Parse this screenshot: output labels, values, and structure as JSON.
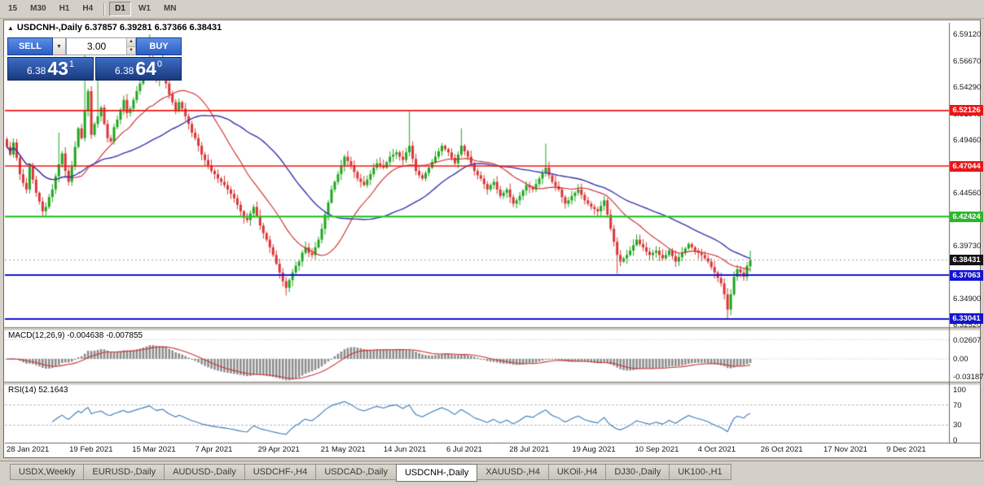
{
  "toolbar": {
    "timeframe_groups": [
      [
        "15",
        "M30",
        "H1",
        "H4"
      ],
      [
        "D1",
        "W1",
        "MN"
      ]
    ],
    "active": "D1"
  },
  "chart": {
    "title_text": "USDCNH-,Daily 6.37857 6.39281 6.37366 6.38431"
  },
  "one_click": {
    "sell_label": "SELL",
    "buy_label": "BUY",
    "volume": "3.00",
    "sell_price": {
      "base": "6.38",
      "pips": "43",
      "sup": "1"
    },
    "buy_price": {
      "base": "6.38",
      "pips": "64",
      "sup": "0"
    }
  },
  "price_axis": {
    "labels": [
      {
        "text": "6.59120",
        "price": 6.5912
      },
      {
        "text": "6.56670",
        "price": 6.5667
      },
      {
        "text": "6.54290",
        "price": 6.5429
      },
      {
        "text": "6.51840",
        "price": 6.5184
      },
      {
        "text": "6.49460",
        "price": 6.4946
      },
      {
        "text": "6.44560",
        "price": 6.4456
      },
      {
        "text": "6.39730",
        "price": 6.3973
      },
      {
        "text": "6.34900",
        "price": 6.349
      },
      {
        "text": "6.32520",
        "price": 6.3252
      }
    ],
    "badges": [
      {
        "text": "6.52126",
        "price": 6.52126,
        "bg": "#e81717",
        "role": "resistance-level"
      },
      {
        "text": "6.47044",
        "price": 6.47044,
        "bg": "#e81717",
        "role": "resistance-level"
      },
      {
        "text": "6.42424",
        "price": 6.42424,
        "bg": "#2db52d",
        "role": "mid-level"
      },
      {
        "text": "6.38431",
        "price": 6.38431,
        "bg": "#141414",
        "role": "current-price"
      },
      {
        "text": "6.37063",
        "price": 6.37063,
        "bg": "#1414d2",
        "role": "support-level"
      },
      {
        "text": "6.33041",
        "price": 6.33041,
        "bg": "#1414d2",
        "role": "support-level"
      }
    ]
  },
  "indicators": {
    "macd": {
      "label": "MACD(12,26,9) -0.004638 -0.007855",
      "axis": [
        {
          "text": "0.02607",
          "value": 0.02607
        },
        {
          "text": "0.00",
          "value": 0
        },
        {
          "text": "-0.03187",
          "value": -0.03187
        }
      ]
    },
    "rsi": {
      "label": "RSI(14) 52.1643",
      "axis": [
        {
          "text": "100",
          "value": 100
        },
        {
          "text": "70",
          "value": 70
        },
        {
          "text": "30",
          "value": 30
        },
        {
          "text": "0",
          "value": 0
        }
      ],
      "levels": [
        70,
        30
      ]
    }
  },
  "date_axis": [
    "28 Jan 2021",
    "19 Feb 2021",
    "15 Mar 2021",
    "7 Apr 2021",
    "29 Apr 2021",
    "21 May 2021",
    "14 Jun 2021",
    "6 Jul 2021",
    "28 Jul 2021",
    "19 Aug 2021",
    "10 Sep 2021",
    "4 Oct 2021",
    "26 Oct 2021",
    "17 Nov 2021",
    "9 Dec 2021"
  ],
  "tabs": [
    {
      "label": "USDX,Weekly",
      "active": false
    },
    {
      "label": "EURUSD-,Daily",
      "active": false
    },
    {
      "label": "AUDUSD-,Daily",
      "active": false
    },
    {
      "label": "USDCHF-,H4",
      "active": false
    },
    {
      "label": "USDCAD-,Daily",
      "active": false
    },
    {
      "label": "USDCNH-,Daily",
      "active": true
    },
    {
      "label": "XAUUSD-,H4",
      "active": false
    },
    {
      "label": "UKOil-,H4",
      "active": false
    },
    {
      "label": "DJ30-,Daily",
      "active": false
    },
    {
      "label": "UK100-,H1",
      "active": false
    }
  ],
  "chart_data": {
    "type": "candlestick",
    "symbol": "USDCNH-",
    "timeframe": "Daily",
    "bid": 6.38431,
    "ask": 6.3864,
    "last_candle_ohlc": {
      "open": 6.37857,
      "high": 6.39281,
      "low": 6.37366,
      "close": 6.38431
    },
    "first_open": 6.495,
    "closes": [
      6.488,
      6.481,
      6.492,
      6.478,
      6.463,
      6.455,
      6.449,
      6.47,
      6.458,
      6.446,
      6.438,
      6.429,
      6.433,
      6.442,
      6.449,
      6.461,
      6.472,
      6.482,
      6.466,
      6.456,
      6.47,
      6.488,
      6.505,
      6.496,
      6.521,
      6.539,
      6.499,
      6.509,
      6.516,
      6.524,
      6.509,
      6.496,
      6.493,
      6.506,
      6.513,
      6.522,
      6.531,
      6.519,
      6.523,
      6.531,
      6.539,
      6.546,
      6.553,
      6.561,
      6.568,
      6.558,
      6.549,
      6.553,
      6.556,
      6.546,
      6.536,
      6.529,
      6.521,
      6.529,
      6.523,
      6.516,
      6.509,
      6.501,
      6.496,
      6.489,
      6.481,
      6.476,
      6.471,
      6.466,
      6.463,
      6.459,
      6.456,
      6.453,
      6.449,
      6.445,
      6.441,
      6.435,
      6.429,
      6.423,
      6.421,
      6.427,
      6.433,
      6.425,
      6.416,
      6.409,
      6.403,
      6.396,
      6.389,
      6.381,
      6.373,
      6.365,
      6.359,
      6.366,
      6.373,
      6.379,
      6.383,
      6.391,
      6.396,
      6.391,
      6.389,
      6.396,
      6.403,
      6.413,
      6.426,
      6.437,
      6.449,
      6.456,
      6.463,
      6.471,
      6.479,
      6.475,
      6.471,
      6.465,
      6.459,
      6.456,
      6.453,
      6.458,
      6.463,
      6.469,
      6.473,
      6.471,
      6.469,
      6.474,
      6.479,
      6.481,
      6.483,
      6.479,
      6.476,
      6.483,
      6.489,
      6.477,
      6.466,
      6.462,
      6.459,
      6.464,
      6.469,
      6.474,
      6.479,
      6.484,
      6.489,
      6.486,
      6.483,
      6.478,
      6.473,
      6.481,
      6.489,
      6.484,
      6.479,
      6.473,
      6.466,
      6.462,
      6.459,
      6.454,
      6.449,
      6.453,
      6.456,
      6.449,
      6.443,
      6.446,
      6.449,
      6.442,
      6.436,
      6.439,
      6.443,
      6.448,
      6.453,
      6.451,
      6.449,
      6.454,
      6.459,
      6.464,
      6.469,
      6.462,
      6.456,
      6.452,
      6.449,
      6.442,
      6.436,
      6.439,
      6.443,
      6.446,
      6.449,
      6.444,
      6.439,
      6.436,
      6.433,
      6.431,
      6.429,
      6.434,
      6.439,
      6.426,
      6.413,
      6.401,
      6.389,
      6.383,
      6.386,
      6.389,
      6.393,
      6.398,
      6.403,
      6.399,
      6.396,
      6.392,
      6.389,
      6.391,
      6.393,
      6.389,
      6.386,
      6.389,
      6.393,
      6.388,
      6.383,
      6.387,
      6.391,
      6.395,
      6.399,
      6.396,
      6.393,
      6.391,
      6.389,
      6.386,
      6.383,
      6.378,
      6.373,
      6.368,
      6.363,
      6.353,
      6.339,
      6.353,
      6.369,
      6.376,
      6.373,
      6.369,
      6.379,
      6.38431
    ],
    "wick_overrides": [
      {
        "i": 16,
        "h": 6.501
      },
      {
        "i": 24,
        "h": 6.585
      },
      {
        "i": 28,
        "h": 6.561
      },
      {
        "i": 44,
        "h": 6.591
      },
      {
        "i": 48,
        "h": 6.579
      },
      {
        "i": 86,
        "l": 6.352
      },
      {
        "i": 124,
        "h": 6.521
      },
      {
        "i": 140,
        "h": 6.505
      },
      {
        "i": 166,
        "h": 6.491
      },
      {
        "i": 188,
        "l": 6.372
      },
      {
        "i": 222,
        "l": 6.3304
      }
    ],
    "horizontal_levels": [
      {
        "price": 6.52126,
        "color": "#f01414",
        "width": 1.6
      },
      {
        "price": 6.47044,
        "color": "#f01414",
        "width": 1.6
      },
      {
        "price": 6.42424,
        "color": "#2fc42f",
        "width": 2.2
      },
      {
        "price": 6.37063,
        "color": "#1414d2",
        "width": 1.8
      },
      {
        "price": 6.33041,
        "color": "#1414d2",
        "width": 1.8
      }
    ],
    "moving_averages": [
      {
        "period": 20,
        "color": "#cc2626"
      },
      {
        "period": 45,
        "color": "#3434ae"
      }
    ],
    "macd": {
      "fast": 12,
      "slow": 26,
      "signal": 9,
      "value": -0.004638,
      "signal_value": -0.007855,
      "hist_color": "#8c8c8c",
      "signal_color": "#cc3333"
    },
    "rsi": {
      "period": 14,
      "value": 52.1643,
      "color": "#3979b8"
    },
    "candle_colors": {
      "bull": "#1ea51e",
      "bear": "#d93636"
    }
  }
}
